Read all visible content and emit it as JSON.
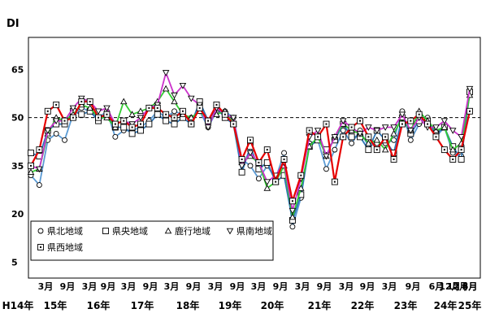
{
  "chart_data": {
    "type": "line",
    "ylabel": "DI",
    "ylim": [
      0,
      75
    ],
    "yticks": [
      5,
      20,
      35,
      50,
      65
    ],
    "reference_line": 50,
    "x_month_labels": [
      "3月",
      "9月",
      "3月",
      "9月",
      "3月",
      "9月",
      "3月",
      "9月",
      "3月",
      "9月",
      "3月",
      "9月",
      "3月",
      "9月",
      "3月",
      "9月",
      "3月",
      "9月",
      "6月",
      "12月",
      "6月",
      "12月",
      "3月"
    ],
    "x_year_labels": [
      "H14年",
      "15年",
      "16年",
      "17年",
      "18年",
      "19年",
      "20年",
      "21年",
      "22年",
      "23年",
      "24年",
      "25年"
    ],
    "legend_position": "bottom-left",
    "series": [
      {
        "name": "県北地域",
        "marker": "circle",
        "color": "#5b9bd5",
        "values": [
          32,
          29,
          43,
          45,
          43,
          51,
          53,
          52,
          50,
          52,
          44,
          46,
          46,
          47,
          49,
          52,
          50,
          52,
          51,
          50,
          52,
          47,
          52,
          52,
          50,
          37,
          35,
          31,
          35,
          31,
          39,
          16,
          25,
          42,
          43,
          34,
          40,
          46,
          42,
          46,
          41,
          42,
          42,
          43,
          52,
          43,
          48,
          50,
          44,
          47,
          39,
          38,
          58
        ]
      },
      {
        "name": "県央地域",
        "marker": "square",
        "color": "#2e75b6",
        "values": [
          39,
          38,
          46,
          48,
          48,
          52,
          51,
          52,
          49,
          51,
          47,
          47,
          45,
          46,
          48,
          51,
          49,
          48,
          50,
          48,
          55,
          49,
          53,
          50,
          48,
          33,
          41,
          34,
          36,
          30,
          32,
          18,
          26,
          41,
          43,
          40,
          43,
          48,
          44,
          44,
          40,
          46,
          43,
          39,
          50,
          45,
          49,
          49,
          45,
          47,
          41,
          37,
          58
        ]
      },
      {
        "name": "鹿行地域",
        "marker": "triangle",
        "color": "#33cc33",
        "values": [
          33,
          34,
          45,
          50,
          49,
          51,
          54,
          53,
          50,
          50,
          47,
          55,
          51,
          52,
          53,
          55,
          59,
          55,
          51,
          50,
          52,
          49,
          51,
          52,
          48,
          36,
          38,
          36,
          28,
          30,
          35,
          19,
          28,
          41,
          44,
          38,
          44,
          48,
          46,
          45,
          42,
          43,
          40,
          45,
          50,
          46,
          52,
          49,
          46,
          47,
          40,
          42,
          57
        ]
      },
      {
        "name": "県南地域",
        "marker": "inverted-triangle",
        "color": "#cc33cc",
        "values": [
          35,
          34,
          46,
          49,
          49,
          53,
          56,
          55,
          52,
          53,
          48,
          49,
          48,
          50,
          53,
          54,
          64,
          57,
          60,
          56,
          54,
          47,
          53,
          51,
          50,
          35,
          39,
          36,
          30,
          32,
          36,
          21,
          31,
          44,
          46,
          38,
          44,
          49,
          47,
          45,
          47,
          46,
          47,
          47,
          51,
          46,
          50,
          47,
          47,
          49,
          46,
          44,
          59
        ]
      },
      {
        "name": "県西地域",
        "marker": "square-dot",
        "color": "#e60000",
        "values": [
          35,
          40,
          52,
          54,
          49,
          50,
          55,
          55,
          50,
          51,
          48,
          49,
          47,
          48,
          53,
          53,
          51,
          50,
          52,
          48,
          53,
          49,
          54,
          51,
          48,
          37,
          43,
          36,
          40,
          30,
          37,
          24,
          32,
          46,
          44,
          48,
          30,
          44,
          47,
          49,
          44,
          40,
          44,
          37,
          48,
          49,
          51,
          48,
          44,
          40,
          37,
          40,
          52
        ]
      }
    ]
  }
}
